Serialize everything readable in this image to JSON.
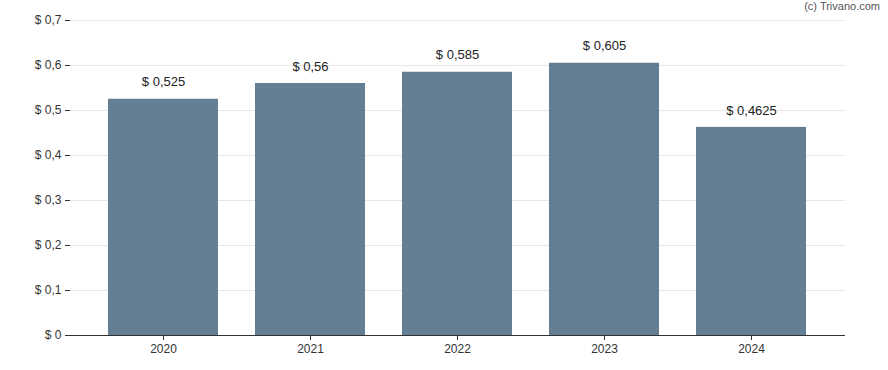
{
  "chart_data": {
    "type": "bar",
    "annotations": [
      "(c) Trivano.com"
    ],
    "categories": [
      "2020",
      "2021",
      "2022",
      "2023",
      "2024"
    ],
    "values": [
      0.525,
      0.56,
      0.585,
      0.605,
      0.4625
    ],
    "value_labels": [
      "$ 0,525",
      "$ 0,56",
      "$ 0,585",
      "$ 0,605",
      "$ 0,4625"
    ],
    "color": "#647f93",
    "ylim": [
      0,
      0.7
    ],
    "yticks": [
      {
        "value": 0,
        "label": "$ 0"
      },
      {
        "value": 0.1,
        "label": "$ 0,1"
      },
      {
        "value": 0.2,
        "label": "$ 0,2"
      },
      {
        "value": 0.3,
        "label": "$ 0,3"
      },
      {
        "value": 0.4,
        "label": "$ 0,4"
      },
      {
        "value": 0.5,
        "label": "$ 0,5"
      },
      {
        "value": 0.6,
        "label": "$ 0,6"
      },
      {
        "value": 0.7,
        "label": "$ 0,7"
      }
    ],
    "grid": true,
    "data_labels": true
  }
}
